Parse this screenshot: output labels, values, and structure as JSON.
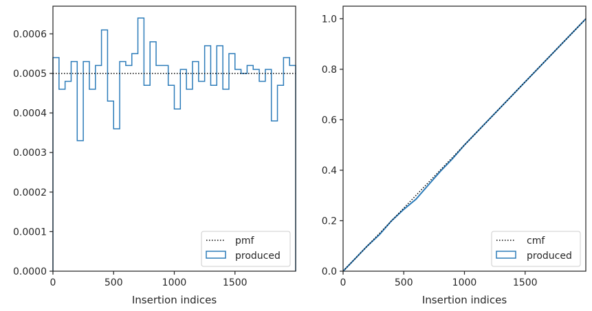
{
  "chart_data": [
    {
      "type": "histogram",
      "xlabel": "Insertion indices",
      "ylabel": "",
      "xlim": [
        0,
        2000
      ],
      "ylim": [
        0,
        0.00067
      ],
      "xticks": [
        0,
        500,
        1000,
        1500
      ],
      "xtick_labels": [
        "0",
        "500",
        "1000",
        "1500"
      ],
      "yticks": [
        0,
        0.0001,
        0.0002,
        0.0003,
        0.0004,
        0.0005,
        0.0006
      ],
      "ytick_labels": [
        "0.0000",
        "0.0001",
        "0.0002",
        "0.0003",
        "0.0004",
        "0.0005",
        "0.0006"
      ],
      "grid": false,
      "legend_position": "bottom-right",
      "reference_line": {
        "name": "pmf",
        "value": 0.0005,
        "style": "dotted",
        "color": "#000000"
      },
      "series": [
        {
          "name": "produced",
          "color": "#2b7bb9",
          "bin_edges": [
            0,
            50,
            100,
            150,
            200,
            250,
            300,
            350,
            400,
            450,
            500,
            550,
            600,
            650,
            700,
            750,
            800,
            850,
            900,
            950,
            1000,
            1050,
            1100,
            1150,
            1200,
            1250,
            1300,
            1350,
            1400,
            1450,
            1500,
            1550,
            1600,
            1650,
            1700,
            1750,
            1800,
            1850,
            1900,
            1950,
            2000
          ],
          "values": [
            0.00054,
            0.00046,
            0.00048,
            0.00053,
            0.00033,
            0.00053,
            0.00046,
            0.00052,
            0.00061,
            0.00043,
            0.00036,
            0.00053,
            0.00052,
            0.00055,
            0.00064,
            0.00047,
            0.00058,
            0.00052,
            0.00052,
            0.00047,
            0.00041,
            0.00051,
            0.00046,
            0.00053,
            0.00048,
            0.00057,
            0.00047,
            0.00057,
            0.00046,
            0.00055,
            0.00051,
            0.0005,
            0.00052,
            0.00051,
            0.00048,
            0.00051,
            0.00038,
            0.00047,
            0.00054,
            0.00052
          ]
        }
      ]
    },
    {
      "type": "step",
      "xlabel": "Insertion indices",
      "ylabel": "",
      "xlim": [
        0,
        2000
      ],
      "ylim": [
        0,
        1.05
      ],
      "xticks": [
        0,
        500,
        1000,
        1500
      ],
      "xtick_labels": [
        "0",
        "500",
        "1000",
        "1500"
      ],
      "yticks": [
        0,
        0.2,
        0.4,
        0.6,
        0.8,
        1.0
      ],
      "ytick_labels": [
        "0.0",
        "0.2",
        "0.4",
        "0.6",
        "0.8",
        "1.0"
      ],
      "grid": false,
      "legend_position": "bottom-right",
      "reference_line": {
        "name": "cmf",
        "from": [
          0,
          0
        ],
        "to": [
          2000,
          1.0
        ],
        "style": "dotted",
        "color": "#000000"
      },
      "series": [
        {
          "name": "produced",
          "color": "#2b7bb9",
          "x": [
            0,
            100,
            200,
            300,
            400,
            500,
            600,
            700,
            800,
            900,
            1000,
            1100,
            1200,
            1300,
            1400,
            1500,
            1600,
            1700,
            1800,
            1900,
            2000
          ],
          "y": [
            0,
            0.05,
            0.1,
            0.145,
            0.2,
            0.245,
            0.285,
            0.34,
            0.395,
            0.445,
            0.5,
            0.55,
            0.6,
            0.65,
            0.7,
            0.75,
            0.8,
            0.85,
            0.9,
            0.95,
            1.0
          ]
        }
      ]
    }
  ],
  "legend": {
    "left": [
      {
        "label": "pmf",
        "kind": "dotted-line"
      },
      {
        "label": "produced",
        "kind": "patch"
      }
    ],
    "right": [
      {
        "label": "cmf",
        "kind": "dotted-line"
      },
      {
        "label": "produced",
        "kind": "patch"
      }
    ]
  }
}
